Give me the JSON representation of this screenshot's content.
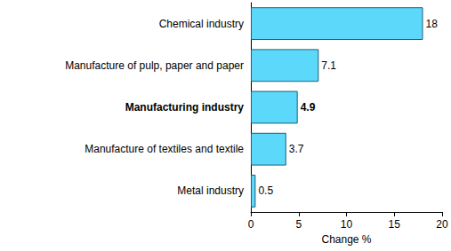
{
  "chart_data": {
    "type": "bar",
    "orientation": "horizontal",
    "categories": [
      "Chemical industry",
      "Manufacture of pulp, paper and paper",
      "Manufacturing industry",
      "Manufacture of textiles and textile",
      "Metal industry"
    ],
    "values": [
      18,
      7.1,
      4.9,
      3.7,
      0.5
    ],
    "color": "#5cd9fa",
    "x_label": "Change %",
    "xlim": [
      0,
      20
    ],
    "xticks": [
      0,
      5,
      10,
      15,
      20
    ],
    "grid": false,
    "data_labels": true
  }
}
